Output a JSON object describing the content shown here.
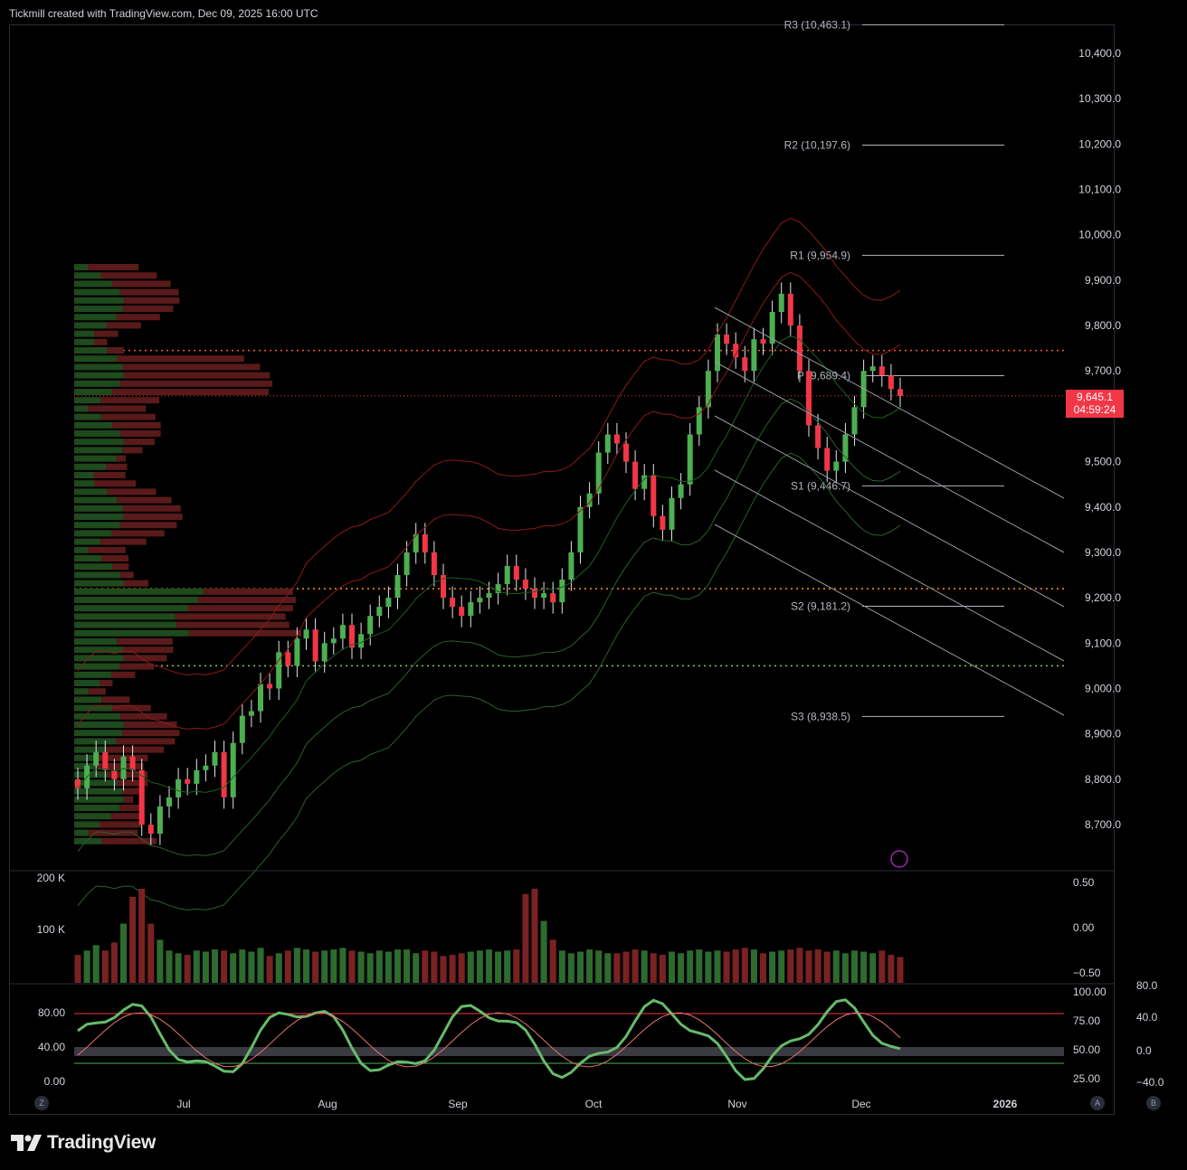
{
  "header": {
    "caption": "Tickmill created with TradingView.com, Dec 09, 2025 16:00 UTC"
  },
  "brand": {
    "name": "TradingView"
  },
  "price_label": {
    "value": "9,645.1",
    "countdown": "04:59:24"
  },
  "time_axis": [
    "Jul",
    "Aug",
    "Sep",
    "Oct",
    "Nov",
    "Dec",
    "2026"
  ],
  "price_axis": [
    "10,400.0",
    "10,300.0",
    "10,200.0",
    "10,100.0",
    "10,000.0",
    "9,900.0",
    "9,800.0",
    "9,700.0",
    "9,500.0",
    "9,400.0",
    "9,300.0",
    "9,200.0",
    "9,100.0",
    "9,000.0",
    "8,900.0",
    "8,800.0",
    "8,700.0"
  ],
  "pivots": [
    {
      "label": "R3 (10,463.1)",
      "value": 10463.1
    },
    {
      "label": "R2 (10,197.6)",
      "value": 10197.6
    },
    {
      "label": "R1 (9,954.9)",
      "value": 9954.9
    },
    {
      "label": "P (9,689.4)",
      "value": 9689.4
    },
    {
      "label": "S1 (9,446.7)",
      "value": 9446.7
    },
    {
      "label": "S2 (9,181.2)",
      "value": 9181.2
    },
    {
      "label": "S3 (8,938.5)",
      "value": 8938.5
    }
  ],
  "volume_pane": {
    "left_labels": [
      "200 K",
      "100 K"
    ],
    "right_labels": [
      "0.50",
      "0.00",
      "−0.50"
    ]
  },
  "oscillator_pane": {
    "left_labels": [
      "80.00",
      "40.00",
      "0.00"
    ],
    "right_labels_a": [
      "100.00",
      "75.00",
      "50.00",
      "25.00"
    ],
    "right_labels_b": [
      "80.0",
      "40.0",
      "0.0",
      "−40.0"
    ]
  },
  "bottom_buttons": {
    "left": "Z",
    "a": "A",
    "b": "B"
  },
  "colors": {
    "up": "#4caf50",
    "down": "#f23645",
    "background": "#000000",
    "poc": "#ff5722",
    "level_orange": "#ff9800",
    "level_green": "#8bc34a"
  },
  "chart_data": {
    "type": "candlestick",
    "title": "",
    "ylim": [
      8620,
      10480
    ],
    "levels": [
      9745,
      9220,
      9050
    ],
    "last_price": 9645.1,
    "closes": [
      8780,
      8830,
      8860,
      8820,
      8800,
      8850,
      8820,
      8700,
      8680,
      8740,
      8760,
      8800,
      8790,
      8820,
      8830,
      8860,
      8760,
      8880,
      8940,
      8950,
      9010,
      9000,
      9080,
      9050,
      9110,
      9130,
      9060,
      9100,
      9110,
      9140,
      9090,
      9120,
      9160,
      9180,
      9200,
      9250,
      9300,
      9340,
      9300,
      9250,
      9200,
      9180,
      9160,
      9190,
      9200,
      9210,
      9230,
      9270,
      9240,
      9220,
      9200,
      9210,
      9190,
      9240,
      9300,
      9400,
      9430,
      9520,
      9560,
      9540,
      9500,
      9440,
      9470,
      9380,
      9350,
      9420,
      9450,
      9560,
      9620,
      9700,
      9780,
      9760,
      9730,
      9700,
      9770,
      9760,
      9830,
      9870,
      9800,
      9700,
      9580,
      9530,
      9480,
      9500,
      9560,
      9620,
      9700,
      9710,
      9690,
      9660,
      9645
    ],
    "volume_max": 200000,
    "volume": [
      52000,
      60000,
      70000,
      60000,
      75000,
      110000,
      160000,
      175000,
      110000,
      80000,
      60000,
      55000,
      52000,
      60000,
      58000,
      62000,
      60000,
      55000,
      62000,
      58000,
      65000,
      50000,
      55000,
      60000,
      65000,
      62000,
      58000,
      60000,
      62000,
      65000,
      60000,
      58000,
      55000,
      60000,
      58000,
      62000,
      62000,
      55000,
      60000,
      58000,
      50000,
      52000,
      55000,
      58000,
      60000,
      62000,
      58000,
      60000,
      62000,
      165000,
      175000,
      115000,
      80000,
      60000,
      55000,
      58000,
      62000,
      60000,
      55000,
      55000,
      58000,
      62000,
      60000,
      55000,
      52000,
      58000,
      55000,
      60000,
      62000,
      58000,
      60000,
      58000,
      62000,
      65000,
      62000,
      55000,
      58000,
      60000,
      62000,
      65000,
      60000,
      62000,
      58000,
      60000,
      55000,
      60000,
      58000,
      55000,
      60000,
      52000,
      48000
    ]
  }
}
